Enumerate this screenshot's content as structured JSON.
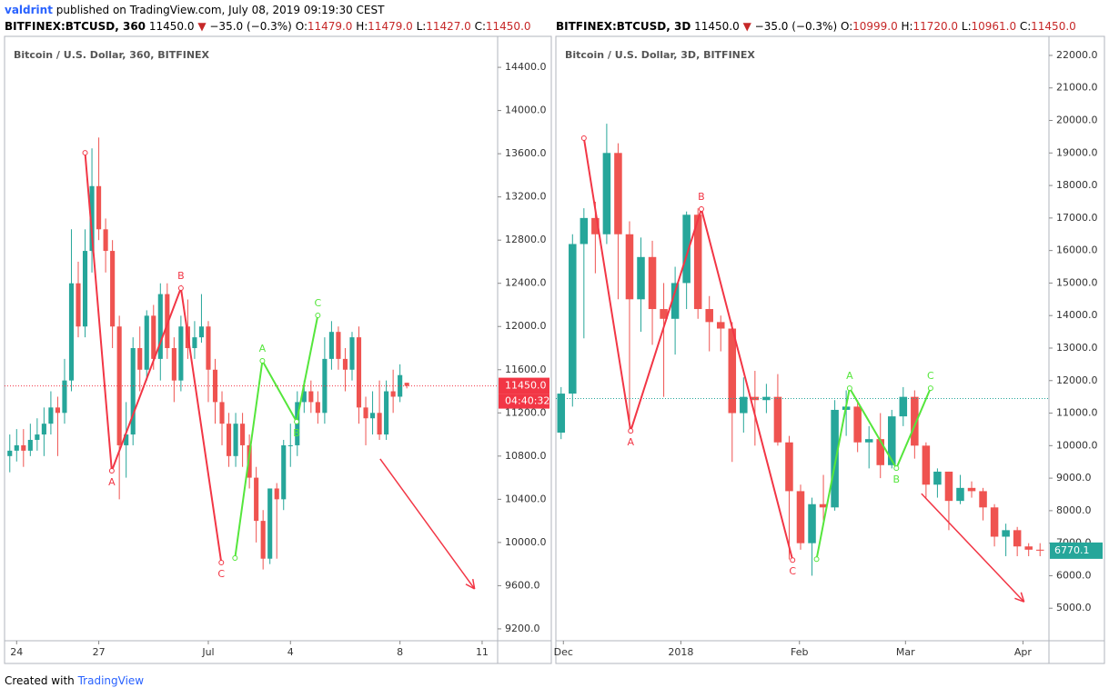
{
  "header": {
    "author": "valdrint",
    "published": "published on TradingView.com, July 08, 2019 09:19:30 CEST"
  },
  "footer": {
    "created": "Created with",
    "brand": "TradingView"
  },
  "chart_data": [
    {
      "type": "candlestick",
      "title": "Bitcoin / U.S. Dollar, 360, BITFINEX",
      "info": {
        "symbol": "BITFINEX:BTCUSD, 360",
        "last": "11450.0",
        "change": "−35.0 (−0.3%)",
        "ohlc": [
          {
            "label": "O:",
            "value": "11479.0"
          },
          {
            "label": "H:",
            "value": "11479.0"
          },
          {
            "label": "L:",
            "value": "11427.0"
          },
          {
            "label": "C:",
            "value": "11450.0"
          }
        ]
      },
      "up_color": "#26a69a",
      "down_color": "#ef5350",
      "xlim": [
        -0.5,
        71
      ],
      "xticks": [
        {
          "value": 1,
          "label": "24"
        },
        {
          "value": 13,
          "label": "27"
        },
        {
          "value": 29,
          "label": "Jul"
        },
        {
          "value": 41,
          "label": "4"
        },
        {
          "value": 57,
          "label": "8"
        },
        {
          "value": 69,
          "label": "11"
        }
      ],
      "ylim": [
        9090,
        14670
      ],
      "yticks": [
        {
          "value": 9200,
          "label": "9200.0"
        },
        {
          "value": 9600,
          "label": "9600.0"
        },
        {
          "value": 10000,
          "label": "10000.0"
        },
        {
          "value": 10400,
          "label": "10400.0"
        },
        {
          "value": 10800,
          "label": "10800.0"
        },
        {
          "value": 11200,
          "label": "11200.0"
        },
        {
          "value": 11600,
          "label": "11600.0"
        },
        {
          "value": 12000,
          "label": "12000.0"
        },
        {
          "value": 12400,
          "label": "12400.0"
        },
        {
          "value": 12800,
          "label": "12800.0"
        },
        {
          "value": 13200,
          "label": "13200.0"
        },
        {
          "value": 13600,
          "label": "13600.0"
        },
        {
          "value": 14000,
          "label": "14000.0"
        },
        {
          "value": 14400,
          "label": "14400.0"
        }
      ],
      "grid": false,
      "open": [
        10800,
        10850,
        10900,
        10850,
        10950,
        11000,
        11100,
        11250,
        11200,
        11500,
        12400,
        12000,
        12700,
        13300,
        12900,
        12700,
        12000,
        10900,
        11000,
        11800,
        11600,
        12100,
        11700,
        12300,
        11800,
        11500,
        12000,
        11800,
        11900,
        12000,
        11600,
        11300,
        11100,
        10800,
        11100,
        10900,
        10600,
        10200,
        9850,
        10500,
        10400,
        10900,
        10900,
        11300,
        11400,
        11300,
        11200,
        11700,
        11950,
        11700,
        11600,
        11900,
        11250,
        11150,
        11200,
        11000,
        11400,
        11350,
        11479
      ],
      "high": [
        11000,
        11050,
        11050,
        11100,
        11150,
        11250,
        11400,
        11350,
        11700,
        12900,
        12600,
        12900,
        13650,
        13750,
        13000,
        12800,
        12100,
        11300,
        11900,
        12000,
        12150,
        12200,
        12400,
        12400,
        11900,
        12100,
        12250,
        12050,
        12300,
        12050,
        11700,
        11400,
        11200,
        11200,
        11200,
        11000,
        10700,
        10300,
        10500,
        10550,
        10950,
        11100,
        11400,
        11500,
        11500,
        11400,
        11900,
        12050,
        12000,
        11800,
        11950,
        12000,
        11350,
        11400,
        11500,
        11500,
        11600,
        11650,
        11479
      ],
      "low": [
        10650,
        10750,
        10700,
        10800,
        10850,
        10800,
        11000,
        10800,
        11100,
        11400,
        11900,
        11900,
        12500,
        12800,
        12500,
        11800,
        10400,
        10600,
        10900,
        11400,
        11500,
        11600,
        11500,
        11700,
        11300,
        11400,
        11700,
        11700,
        11850,
        11300,
        11100,
        10900,
        10700,
        10700,
        10700,
        10500,
        10000,
        9750,
        9800,
        9850,
        10300,
        10700,
        10800,
        11200,
        11200,
        11100,
        11100,
        11600,
        11600,
        11400,
        11500,
        11100,
        10900,
        11000,
        10950,
        10950,
        11200,
        11300,
        11427
      ],
      "close": [
        10850,
        10900,
        10850,
        10950,
        11000,
        11100,
        11250,
        11200,
        11500,
        12400,
        12000,
        12700,
        13300,
        12900,
        12700,
        12000,
        10900,
        11000,
        11800,
        11600,
        12100,
        11700,
        12300,
        11800,
        11500,
        12000,
        11800,
        11900,
        12000,
        11600,
        11300,
        11100,
        10800,
        11100,
        10900,
        10600,
        10200,
        9850,
        10500,
        10400,
        10900,
        10900,
        11300,
        11400,
        11300,
        11200,
        11700,
        11950,
        11700,
        11600,
        11900,
        11250,
        11150,
        11200,
        11000,
        11400,
        11350,
        11550,
        11450
      ],
      "price_line": {
        "value": 11450,
        "label": "11450.0",
        "countdown": "04:40:32",
        "color": "#f23645"
      },
      "patterns": [
        {
          "color": "#f23645",
          "x": [
            11,
            14.9,
            25,
            30.9
          ],
          "y": [
            13609,
            10664,
            12355,
            9814
          ],
          "labels": [
            null,
            "A",
            "B",
            "C"
          ]
        },
        {
          "color": "#55e63c",
          "x": [
            32.9,
            36.9,
            41.9,
            45
          ],
          "y": [
            9856,
            11682,
            11118,
            12103
          ],
          "labels": [
            null,
            "A",
            "B",
            "C"
          ]
        }
      ],
      "arrows": [
        {
          "color": "#f23645",
          "x": [
            54.1,
            67.9
          ],
          "y": [
            10774,
            9570
          ]
        }
      ]
    },
    {
      "type": "candlestick",
      "title": "Bitcoin / U.S. Dollar, 3D, BITFINEX",
      "info": {
        "symbol": "BITFINEX:BTCUSD, 3D",
        "last": "11450.0",
        "change": "−35.0 (−0.3%)",
        "ohlc": [
          {
            "label": "O:",
            "value": "10999.0"
          },
          {
            "label": "H:",
            "value": "11720.0"
          },
          {
            "label": "L:",
            "value": "10961.0"
          },
          {
            "label": "C:",
            "value": "11450.0"
          }
        ]
      },
      "up_color": "#26a69a",
      "down_color": "#ef5350",
      "xlim": [
        -0.3,
        42.7
      ],
      "xticks": [
        {
          "value": 0.2,
          "label": "Dec"
        },
        {
          "value": 10.5,
          "label": "2018"
        },
        {
          "value": 20.9,
          "label": "Feb"
        },
        {
          "value": 30.2,
          "label": "Mar"
        },
        {
          "value": 40.5,
          "label": "Apr"
        }
      ],
      "ylim": [
        4000,
        22530
      ],
      "yticks": [
        {
          "value": 5000,
          "label": "5000.0"
        },
        {
          "value": 6000,
          "label": "6000.0"
        },
        {
          "value": 7000,
          "label": "7000.0"
        },
        {
          "value": 8000,
          "label": "8000.0"
        },
        {
          "value": 9000,
          "label": "9000.0"
        },
        {
          "value": 10000,
          "label": "10000.0"
        },
        {
          "value": 11000,
          "label": "11000.0"
        },
        {
          "value": 12000,
          "label": "12000.0"
        },
        {
          "value": 13000,
          "label": "13000.0"
        },
        {
          "value": 14000,
          "label": "14000.0"
        },
        {
          "value": 15000,
          "label": "15000.0"
        },
        {
          "value": 16000,
          "label": "16000.0"
        },
        {
          "value": 17000,
          "label": "17000.0"
        },
        {
          "value": 18000,
          "label": "18000.0"
        },
        {
          "value": 19000,
          "label": "19000.0"
        },
        {
          "value": 20000,
          "label": "20000.0"
        },
        {
          "value": 21000,
          "label": "21000.0"
        },
        {
          "value": 22000,
          "label": "22000.0"
        }
      ],
      "grid": false,
      "open": [
        10400,
        11600,
        16200,
        17000,
        16500,
        19000,
        16500,
        14500,
        15800,
        14200,
        13900,
        15000,
        17100,
        14200,
        13800,
        13600,
        11000,
        11500,
        11400,
        11500,
        10100,
        8600,
        7000,
        8200,
        8100,
        11100,
        11200,
        10100,
        10200,
        9400,
        10900,
        11500,
        10000,
        8800,
        9200,
        8300,
        8700,
        8600,
        8100,
        7200,
        7400,
        6900,
        6800
      ],
      "high": [
        11800,
        16500,
        17300,
        17500,
        19900,
        19300,
        16900,
        16400,
        16300,
        15000,
        15500,
        17200,
        17300,
        14600,
        14000,
        13800,
        12100,
        12300,
        11900,
        12200,
        10300,
        8800,
        8400,
        9100,
        11400,
        11700,
        11400,
        10600,
        11000,
        11100,
        11800,
        11700,
        10100,
        9300,
        9200,
        9100,
        8900,
        8700,
        8200,
        7600,
        7500,
        7000,
        7000
      ],
      "low": [
        10200,
        11200,
        13300,
        15300,
        16200,
        14500,
        10400,
        13500,
        13100,
        11500,
        12800,
        14200,
        13900,
        12900,
        12900,
        9500,
        10400,
        10000,
        11000,
        10000,
        6500,
        6800,
        6000,
        7700,
        8000,
        10300,
        9800,
        9300,
        9000,
        9300,
        10600,
        9600,
        8400,
        8400,
        7400,
        8200,
        8400,
        7700,
        6900,
        6600,
        6600,
        6600,
        6600
      ],
      "close": [
        11600,
        16200,
        17000,
        16500,
        19000,
        16500,
        14500,
        15800,
        14200,
        13900,
        15000,
        17100,
        14200,
        13800,
        13600,
        11000,
        11500,
        11400,
        11500,
        10100,
        8600,
        7000,
        8200,
        8100,
        11100,
        11200,
        10100,
        10200,
        9400,
        10900,
        11500,
        10000,
        8800,
        9200,
        8300,
        8700,
        8600,
        8100,
        7200,
        7400,
        6900,
        6800,
        6770.1
      ],
      "price_line": {
        "value": 11450,
        "color": "#26a69a"
      },
      "last_value": {
        "value": 6770.1,
        "color": "#26a69a"
      },
      "patterns": [
        {
          "color": "#f23645",
          "x": [
            2,
            6.1,
            12.3,
            20.3
          ],
          "y": [
            19456,
            10452,
            17275,
            6482
          ],
          "labels": [
            null,
            "A",
            "B",
            "C"
          ]
        },
        {
          "color": "#55e63c",
          "x": [
            22.4,
            25.3,
            29.4,
            32.4
          ],
          "y": [
            6510,
            11767,
            9306,
            11767
          ],
          "labels": [
            null,
            "A",
            "B",
            "C"
          ]
        }
      ],
      "arrows": [
        {
          "color": "#f23645",
          "x": [
            31.6,
            40.6
          ],
          "y": [
            8523,
            5196
          ]
        }
      ]
    }
  ]
}
